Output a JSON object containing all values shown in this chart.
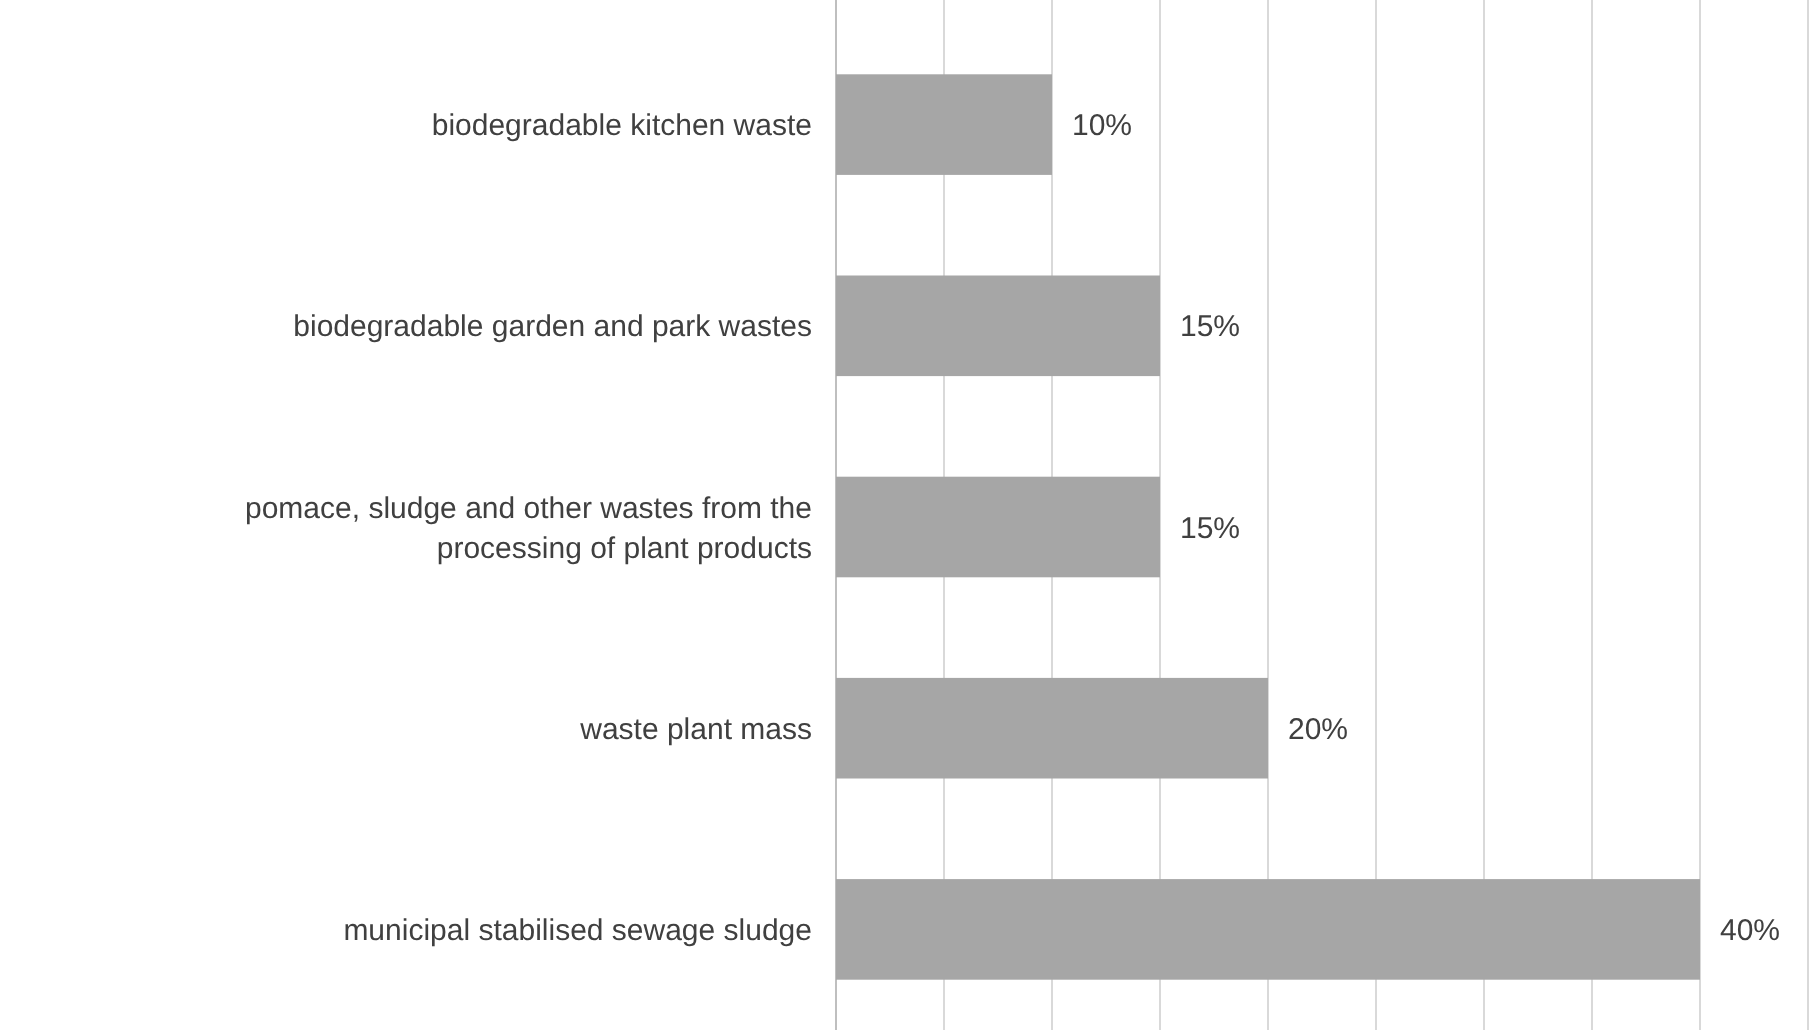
{
  "chart_data": {
    "type": "bar",
    "orientation": "horizontal",
    "categories": [
      "biodegradable kitchen waste",
      "biodegradable garden and park wastes",
      "pomace, sludge and other wastes from the processing of plant products",
      "waste plant mass",
      "municipal stabilised sewage sludge"
    ],
    "values": [
      10,
      15,
      15,
      20,
      40
    ],
    "value_labels": [
      "10%",
      "15%",
      "15%",
      "20%",
      "40%"
    ],
    "color": "#a6a6a6",
    "xlim": [
      0,
      45
    ],
    "xticks": [
      {
        "value": 0,
        "label": null
      },
      {
        "value": 5,
        "label": null
      },
      {
        "value": 10,
        "label": null
      },
      {
        "value": 15,
        "label": null
      },
      {
        "value": 20,
        "label": null
      },
      {
        "value": 25,
        "label": null
      },
      {
        "value": 30,
        "label": null
      },
      {
        "value": 35,
        "label": null
      },
      {
        "value": 40,
        "label": null
      },
      {
        "value": 45,
        "label": null
      }
    ],
    "grid": "x",
    "tick_labels": "y"
  }
}
